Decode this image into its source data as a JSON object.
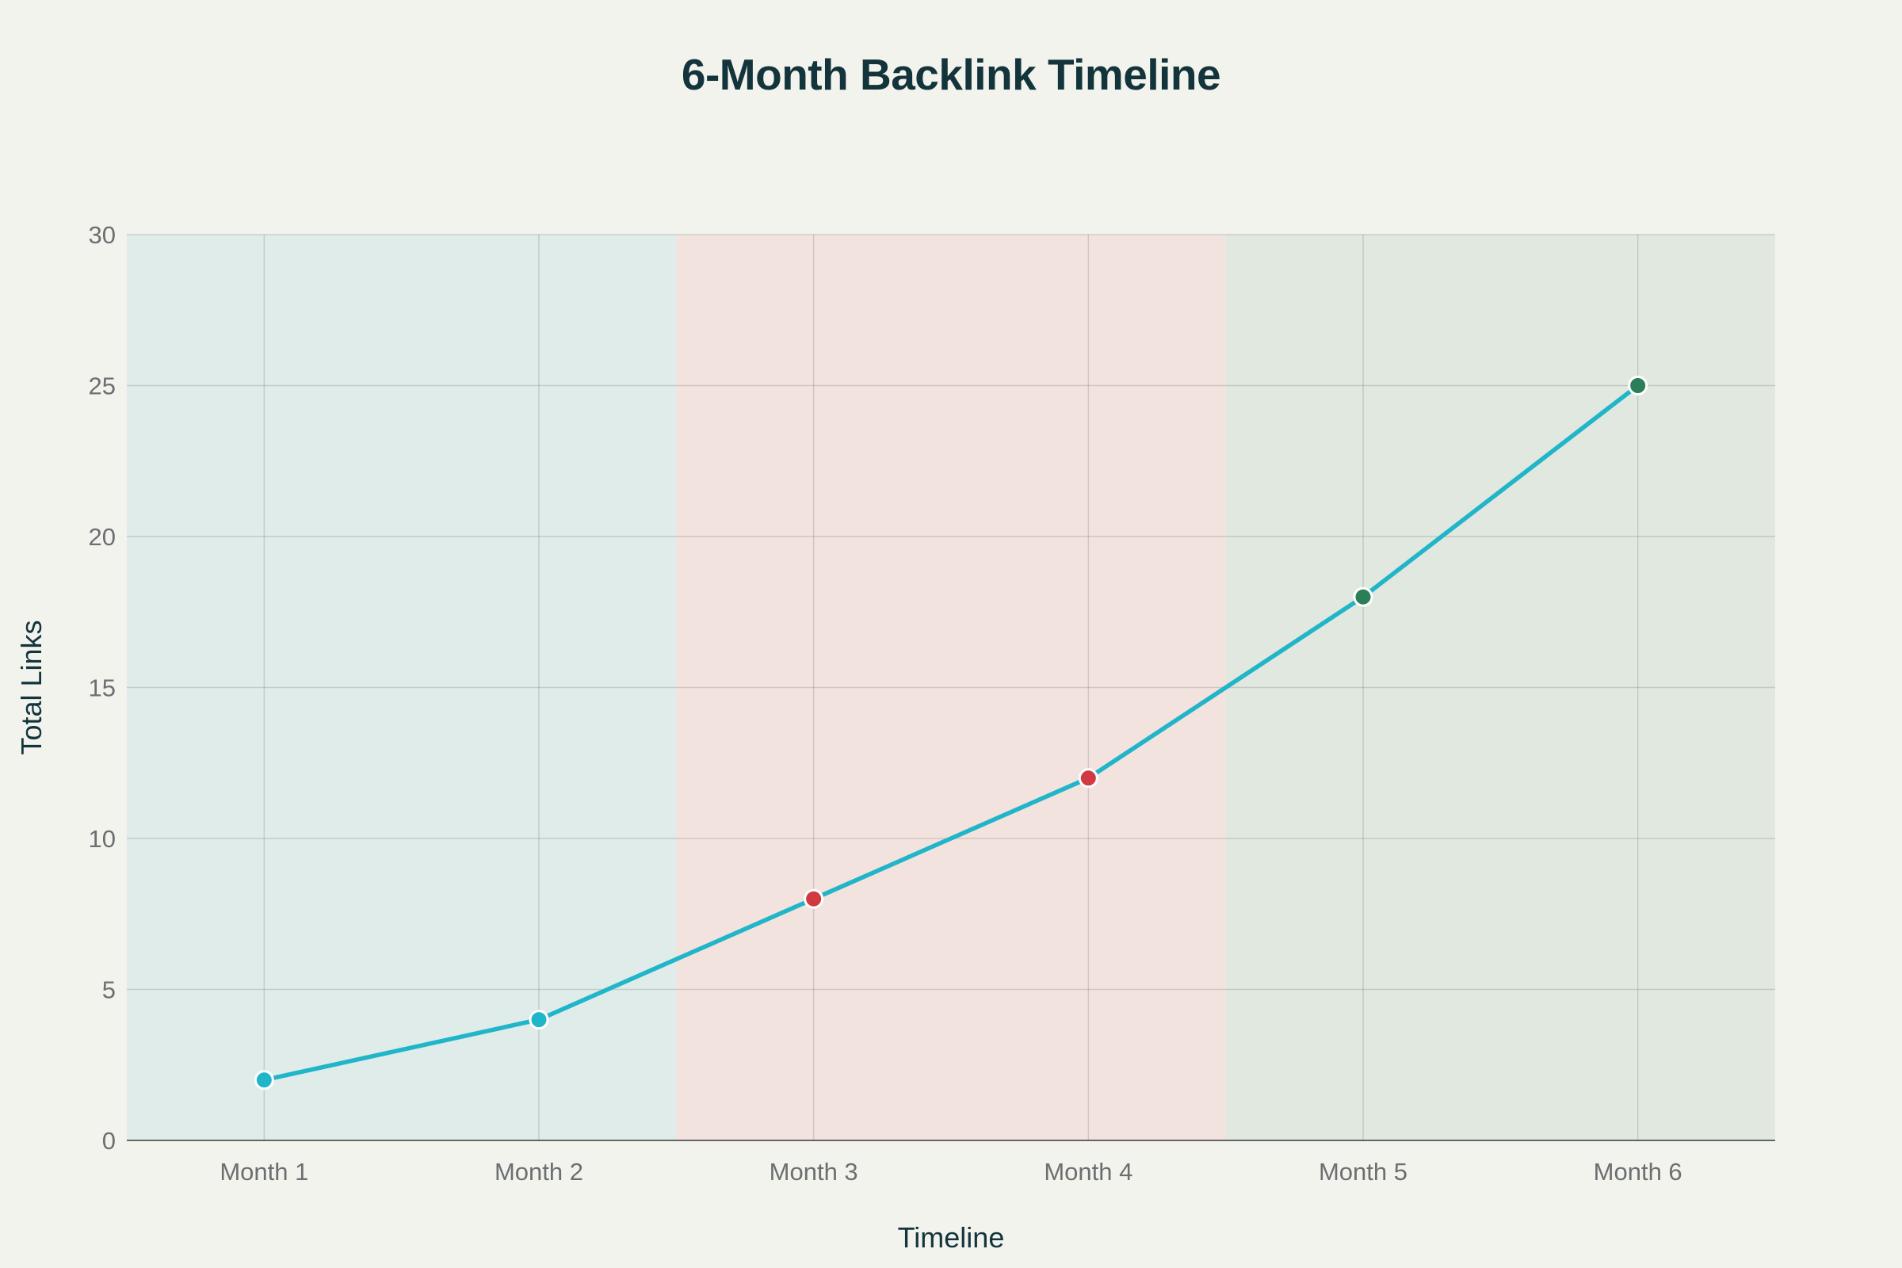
{
  "chart_data": {
    "type": "line",
    "title": "6-Month Backlink Timeline",
    "xlabel": "Timeline",
    "ylabel": "Total Links",
    "categories": [
      "Month 1",
      "Month 2",
      "Month 3",
      "Month 4",
      "Month 5",
      "Month 6"
    ],
    "series": [
      {
        "values": [
          2,
          4,
          8,
          12,
          18,
          25
        ],
        "color": "#21b5c9",
        "point_colors": [
          "#21b5c9",
          "#21b5c9",
          "#d13a40",
          "#d13a40",
          "#2b7f58",
          "#2b7f58"
        ]
      }
    ],
    "ylim": [
      0,
      30
    ],
    "yticks": [
      0,
      5,
      10,
      15,
      20,
      25,
      30
    ],
    "grid": true,
    "background_bands": [
      {
        "from": "Month 1",
        "to": "Month 2",
        "color": "#dfecea"
      },
      {
        "from": "Month 3",
        "to": "Month 4",
        "color": "#f2e3df"
      },
      {
        "from": "Month 5",
        "to": "Month 6",
        "color": "#e0e8df"
      }
    ]
  }
}
